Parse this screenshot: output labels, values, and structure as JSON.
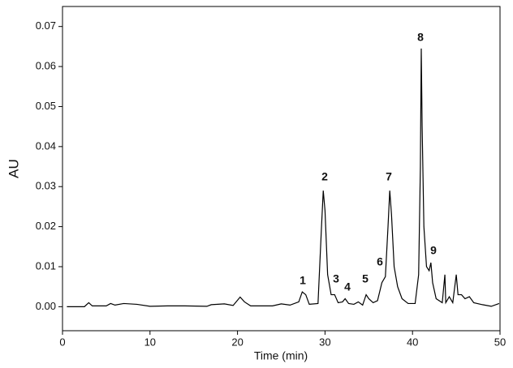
{
  "chart_data": {
    "type": "line",
    "x_label": "Time (min)",
    "y_label": "AU",
    "x": [
      0.5,
      2.5,
      3.0,
      3.4,
      5.0,
      5.5,
      6.0,
      7.0,
      8.5,
      10.0,
      12.0,
      14.0,
      16.5,
      17.0,
      18.5,
      19.5,
      20.3,
      20.8,
      21.5,
      24.0,
      25.0,
      26.0,
      27.0,
      27.4,
      27.8,
      28.2,
      29.2,
      29.6,
      29.8,
      30.0,
      30.3,
      30.7,
      31.1,
      31.5,
      32.0,
      32.3,
      32.7,
      33.3,
      33.8,
      34.3,
      34.7,
      35.0,
      35.5,
      36.0,
      36.5,
      36.9,
      37.2,
      37.4,
      37.6,
      37.9,
      38.3,
      38.8,
      39.5,
      40.3,
      40.7,
      40.9,
      41.0,
      41.1,
      41.3,
      41.6,
      41.9,
      42.1,
      42.3,
      42.7,
      43.4,
      43.7,
      43.8,
      44.2,
      44.6,
      45.0,
      45.2,
      45.6,
      46.0,
      46.5,
      47.0,
      48.0,
      49.0,
      49.9
    ],
    "values": [
      0.0,
      0.0,
      0.001,
      0.0002,
      0.0002,
      0.0008,
      0.0004,
      0.0008,
      0.0006,
      0.0001,
      0.0002,
      0.0002,
      0.0001,
      0.0005,
      0.0007,
      0.0003,
      0.0024,
      0.0012,
      0.0002,
      0.0002,
      0.0007,
      0.0004,
      0.0012,
      0.0037,
      0.003,
      0.0006,
      0.0008,
      0.02,
      0.029,
      0.024,
      0.008,
      0.003,
      0.003,
      0.001,
      0.0012,
      0.002,
      0.0008,
      0.0006,
      0.0012,
      0.0004,
      0.003,
      0.002,
      0.001,
      0.0015,
      0.006,
      0.0075,
      0.02,
      0.029,
      0.023,
      0.01,
      0.005,
      0.002,
      0.0008,
      0.0008,
      0.008,
      0.035,
      0.0645,
      0.045,
      0.02,
      0.01,
      0.009,
      0.011,
      0.006,
      0.002,
      0.001,
      0.008,
      0.001,
      0.0025,
      0.001,
      0.008,
      0.003,
      0.003,
      0.002,
      0.0025,
      0.001,
      0.0005,
      0.0001,
      0.0008
    ],
    "color": "#000000",
    "xlim": [
      0,
      50
    ],
    "xticks": [
      0,
      10,
      20,
      30,
      40,
      50
    ],
    "ylim": [
      -0.006,
      0.075
    ],
    "yticks": [
      {
        "value": 0,
        "label": "0.00"
      },
      0.01,
      0.02,
      0.03,
      0.04,
      0.05,
      0.06,
      0.07
    ],
    "annotations": [
      "1",
      "2",
      "3",
      "4",
      "5",
      "6",
      "7",
      "8",
      "9"
    ]
  }
}
